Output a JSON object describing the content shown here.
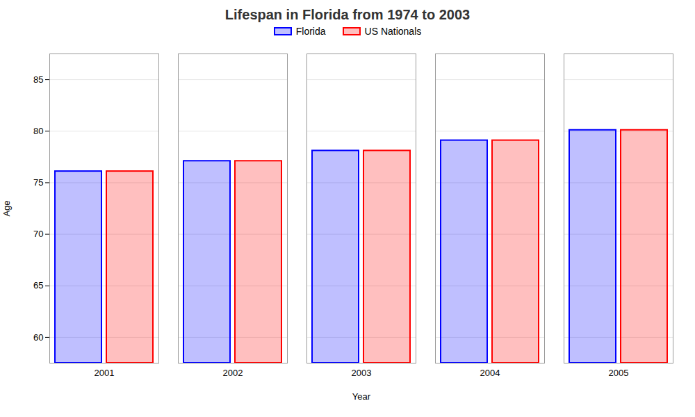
{
  "chart_data": {
    "type": "bar",
    "title": "Lifespan in Florida from 1974 to 2003",
    "x_label": "Year",
    "y_label": "Age",
    "categories": [
      "2001",
      "2002",
      "2003",
      "2004",
      "2005"
    ],
    "series": [
      {
        "name": "Florida",
        "color": "#0000ff",
        "values": [
          76.1,
          77.1,
          78.1,
          79.1,
          80.1
        ]
      },
      {
        "name": "US Nationals",
        "color": "#ff0000",
        "values": [
          76.1,
          77.1,
          78.1,
          79.1,
          80.1
        ]
      }
    ],
    "ylim": [
      57.5,
      87.5
    ],
    "yticks": [
      60,
      65,
      70,
      75,
      80,
      85
    ],
    "grid": true,
    "legend": "top"
  }
}
